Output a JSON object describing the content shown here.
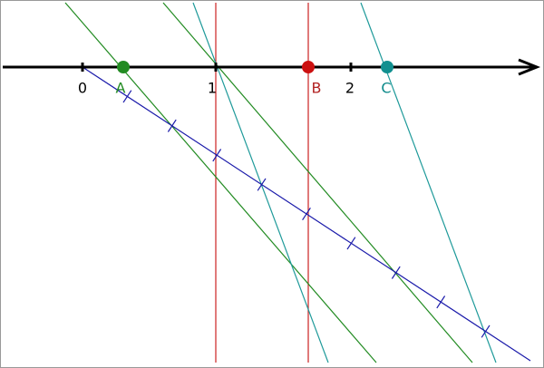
{
  "axis": {
    "tick_labels": [
      "0",
      "1",
      "2"
    ]
  },
  "points": [
    {
      "label": "A",
      "color": "#228b22"
    },
    {
      "label": "B",
      "color": "#b22222"
    },
    {
      "label": "C",
      "color": "#0f8b8b"
    }
  ]
}
